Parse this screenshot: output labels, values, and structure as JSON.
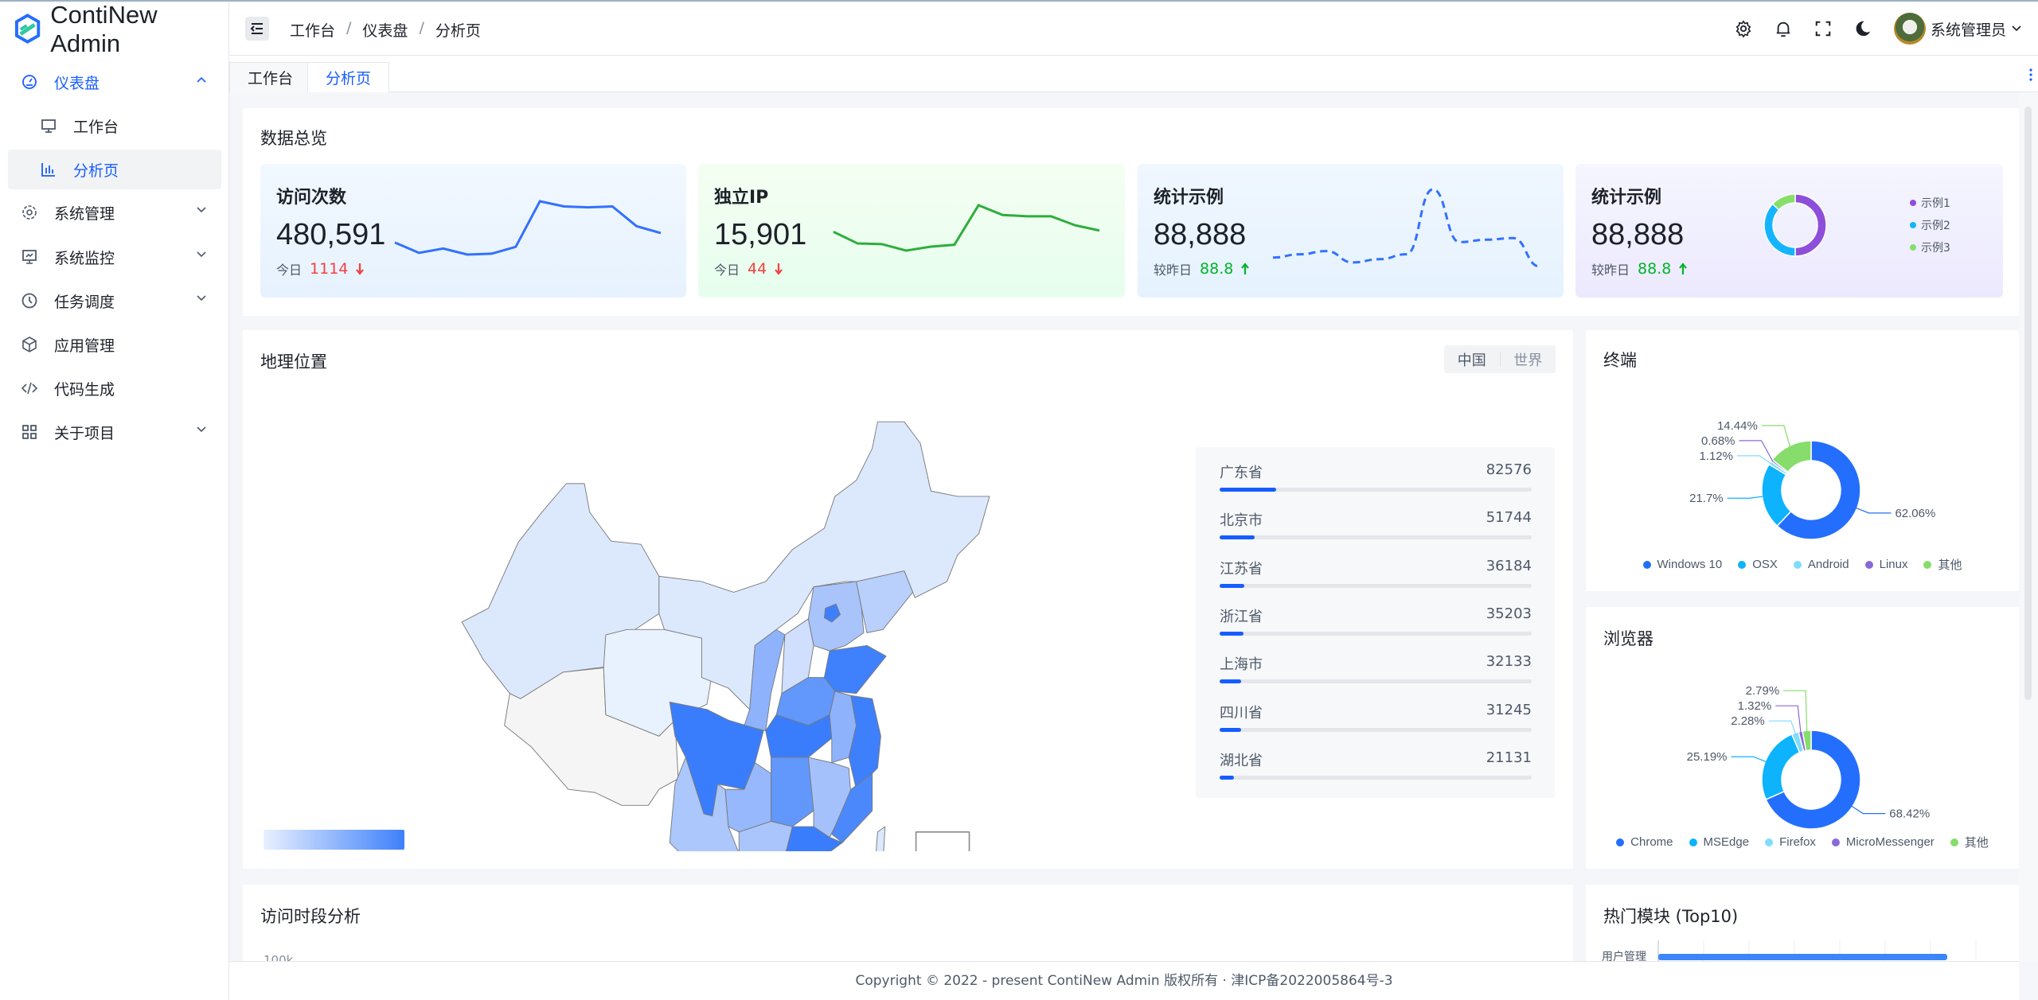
{
  "app": {
    "title": "ContiNew Admin"
  },
  "breadcrumb": [
    "工作台",
    "仪表盘",
    "分析页"
  ],
  "header": {
    "user": "系统管理员",
    "icons": [
      "gear-icon",
      "bell-icon",
      "fullscreen-icon",
      "moon-icon"
    ]
  },
  "tabs": [
    {
      "label": "工作台"
    },
    {
      "label": "分析页",
      "active": true
    }
  ],
  "sidebar": {
    "items": [
      {
        "label": "仪表盘",
        "icon": "dashboard-icon",
        "expanded": true
      },
      {
        "label": "工作台",
        "icon": "monitor-icon",
        "sub": true
      },
      {
        "label": "分析页",
        "icon": "bar-chart-icon",
        "sub": true,
        "active": true
      },
      {
        "label": "系统管理",
        "icon": "settings-icon"
      },
      {
        "label": "系统监控",
        "icon": "monitor-chart-icon"
      },
      {
        "label": "任务调度",
        "icon": "clock-icon"
      },
      {
        "label": "应用管理",
        "icon": "cube-icon"
      },
      {
        "label": "代码生成",
        "icon": "code-icon"
      },
      {
        "label": "关于项目",
        "icon": "apps-icon"
      }
    ]
  },
  "overview": {
    "title": "数据总览",
    "cards": [
      {
        "title": "访问次数",
        "value": "480,591",
        "sub_label": "今日",
        "delta": "1114",
        "trend": "down",
        "color": "#3370ff",
        "spark": [
          30,
          18,
          23,
          16,
          17,
          25,
          78,
          72,
          71,
          72,
          49,
          41
        ]
      },
      {
        "title": "独立IP",
        "value": "15,901",
        "sub_label": "今日",
        "delta": "44",
        "trend": "down",
        "color": "#2fad3c",
        "spark": [
          48,
          30,
          29,
          19,
          25,
          28,
          89,
          74,
          72,
          72,
          58,
          50
        ]
      },
      {
        "title": "统计示例",
        "value": "88,888",
        "sub_label": "较昨日",
        "delta": "88.8",
        "trend": "up",
        "color": "#3370ff",
        "spark": [
          16,
          20,
          24,
          10,
          14,
          20,
          100,
          35,
          38,
          40,
          5
        ]
      },
      {
        "title": "统计示例",
        "value": "88,888",
        "sub_label": "较昨日",
        "delta": "88.8",
        "trend": "up",
        "donut": [
          {
            "name": "示例1",
            "value": 50,
            "color": "#8d4eda"
          },
          {
            "name": "示例2",
            "value": 37,
            "color": "#14b4ff"
          },
          {
            "name": "示例3",
            "value": 13,
            "color": "#86df6c"
          }
        ]
      }
    ]
  },
  "geo": {
    "title": "地理位置",
    "toggle": [
      "中国",
      "世界"
    ],
    "provinces": [
      {
        "name": "广东省",
        "value": "82576",
        "percent": 18
      },
      {
        "name": "北京市",
        "value": "51744",
        "percent": 11.3
      },
      {
        "name": "江苏省",
        "value": "36184",
        "percent": 7.9
      },
      {
        "name": "浙江省",
        "value": "35203",
        "percent": 7.7
      },
      {
        "name": "上海市",
        "value": "32133",
        "percent": 7
      },
      {
        "name": "四川省",
        "value": "31245",
        "percent": 6.8
      },
      {
        "name": "湖北省",
        "value": "21131",
        "percent": 4.6
      }
    ]
  },
  "chart_data": [
    {
      "type": "pie",
      "title": "终端",
      "series": [
        {
          "name": "Windows 10",
          "value": 62.06,
          "label": "62.06%",
          "color": "#246efd"
        },
        {
          "name": "OSX",
          "value": 21.7,
          "label": "21.7%",
          "color": "#0db3fd"
        },
        {
          "name": "Android",
          "value": 1.12,
          "label": "1.12%",
          "color": "#7fdcfd"
        },
        {
          "name": "Linux",
          "value": 0.68,
          "label": "0.68%",
          "color": "#8a68d9"
        },
        {
          "name": "其他",
          "value": 14.44,
          "label": "14.44%",
          "color": "#86dd6b"
        }
      ],
      "legend": "bottom"
    },
    {
      "type": "pie",
      "title": "浏览器",
      "series": [
        {
          "name": "Chrome",
          "value": 68.42,
          "label": "68.42%",
          "color": "#246efd"
        },
        {
          "name": "MSEdge",
          "value": 25.19,
          "label": "25.19%",
          "color": "#0db3fd"
        },
        {
          "name": "Firefox",
          "value": 2.28,
          "label": "2.28%",
          "color": "#7fdcfd"
        },
        {
          "name": "MicroMessenger",
          "value": 1.32,
          "label": "1.32%",
          "color": "#8a68d9"
        },
        {
          "name": "其他",
          "value": 2.79,
          "label": "2.79%",
          "color": "#86dd6b"
        }
      ],
      "legend": "bottom"
    }
  ],
  "visits": {
    "title": "访问时段分析",
    "y_tick": "100k"
  },
  "top_modules": {
    "title": "热门模块 (Top10)",
    "first_label": "用户管理"
  },
  "footer": {
    "text": "Copyright © 2022 - present ContiNew Admin 版权所有 · 津ICP备2022005864号-3"
  }
}
